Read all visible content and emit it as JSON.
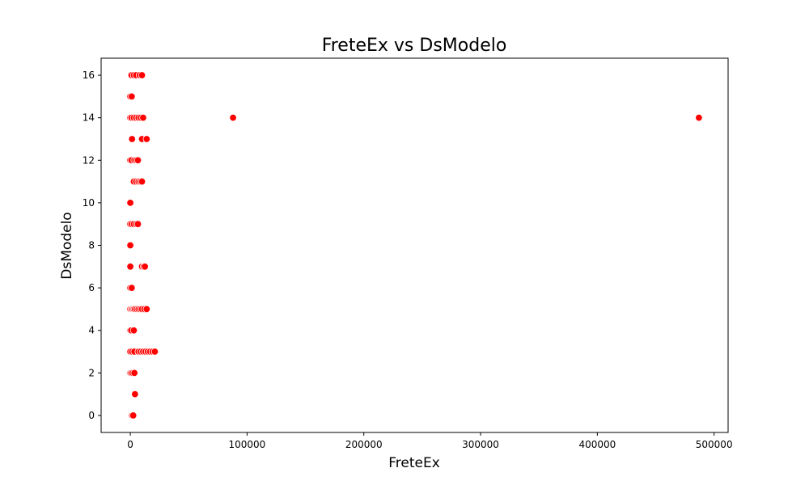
{
  "chart_data": {
    "type": "scatter",
    "title": "FreteEx vs DsModelo",
    "xlabel": "FreteEx",
    "ylabel": "DsModelo",
    "xlim": [
      -25000,
      512000
    ],
    "ylim": [
      -0.8,
      16.8
    ],
    "xticks": [
      0,
      100000,
      200000,
      300000,
      400000,
      500000
    ],
    "yticks": [
      0,
      2,
      4,
      6,
      8,
      10,
      12,
      14,
      16
    ],
    "grid": false,
    "legend": null,
    "marker_color": "#ff0000",
    "marker_edge_color": "#ffffff",
    "points": [
      {
        "x": 1500,
        "y": 0
      },
      {
        "x": 2500,
        "y": 0
      },
      {
        "x": 4000,
        "y": 1
      },
      {
        "x": 0,
        "y": 2
      },
      {
        "x": 800,
        "y": 2
      },
      {
        "x": 2000,
        "y": 2
      },
      {
        "x": 3500,
        "y": 2
      },
      {
        "x": 0,
        "y": 3
      },
      {
        "x": 1500,
        "y": 3
      },
      {
        "x": 3500,
        "y": 3
      },
      {
        "x": 7000,
        "y": 3
      },
      {
        "x": 9000,
        "y": 3
      },
      {
        "x": 11000,
        "y": 3
      },
      {
        "x": 13000,
        "y": 3
      },
      {
        "x": 15000,
        "y": 3
      },
      {
        "x": 17000,
        "y": 3
      },
      {
        "x": 19000,
        "y": 3
      },
      {
        "x": 21000,
        "y": 3
      },
      {
        "x": 0,
        "y": 4
      },
      {
        "x": 800,
        "y": 4
      },
      {
        "x": 3000,
        "y": 4
      },
      {
        "x": 0,
        "y": 5
      },
      {
        "x": 1000,
        "y": 5
      },
      {
        "x": 2000,
        "y": 5
      },
      {
        "x": 3000,
        "y": 5
      },
      {
        "x": 4000,
        "y": 5
      },
      {
        "x": 5500,
        "y": 5
      },
      {
        "x": 7000,
        "y": 5
      },
      {
        "x": 8500,
        "y": 5
      },
      {
        "x": 10000,
        "y": 5
      },
      {
        "x": 12000,
        "y": 5
      },
      {
        "x": 14000,
        "y": 5
      },
      {
        "x": 0,
        "y": 6
      },
      {
        "x": 1200,
        "y": 6
      },
      {
        "x": 0,
        "y": 7
      },
      {
        "x": 10000,
        "y": 7
      },
      {
        "x": 11500,
        "y": 7
      },
      {
        "x": 12500,
        "y": 7
      },
      {
        "x": 0,
        "y": 8
      },
      {
        "x": 0,
        "y": 9
      },
      {
        "x": 1200,
        "y": 9
      },
      {
        "x": 3000,
        "y": 9
      },
      {
        "x": 5000,
        "y": 9
      },
      {
        "x": 6500,
        "y": 9
      },
      {
        "x": 0,
        "y": 10
      },
      {
        "x": 3000,
        "y": 11
      },
      {
        "x": 5000,
        "y": 11
      },
      {
        "x": 7000,
        "y": 11
      },
      {
        "x": 8500,
        "y": 11
      },
      {
        "x": 10000,
        "y": 11
      },
      {
        "x": 0,
        "y": 12
      },
      {
        "x": 1000,
        "y": 12
      },
      {
        "x": 3500,
        "y": 12
      },
      {
        "x": 5000,
        "y": 12
      },
      {
        "x": 6500,
        "y": 12
      },
      {
        "x": 1500,
        "y": 13
      },
      {
        "x": 10000,
        "y": 13
      },
      {
        "x": 14000,
        "y": 13
      },
      {
        "x": 0,
        "y": 14
      },
      {
        "x": 1000,
        "y": 14
      },
      {
        "x": 3000,
        "y": 14
      },
      {
        "x": 5000,
        "y": 14
      },
      {
        "x": 7000,
        "y": 14
      },
      {
        "x": 9000,
        "y": 14
      },
      {
        "x": 11000,
        "y": 14
      },
      {
        "x": 88000,
        "y": 14
      },
      {
        "x": 487000,
        "y": 14
      },
      {
        "x": 0,
        "y": 15
      },
      {
        "x": 1200,
        "y": 15
      },
      {
        "x": 1000,
        "y": 16
      },
      {
        "x": 3000,
        "y": 16
      },
      {
        "x": 5000,
        "y": 16
      },
      {
        "x": 8000,
        "y": 16
      },
      {
        "x": 10000,
        "y": 16
      }
    ]
  }
}
